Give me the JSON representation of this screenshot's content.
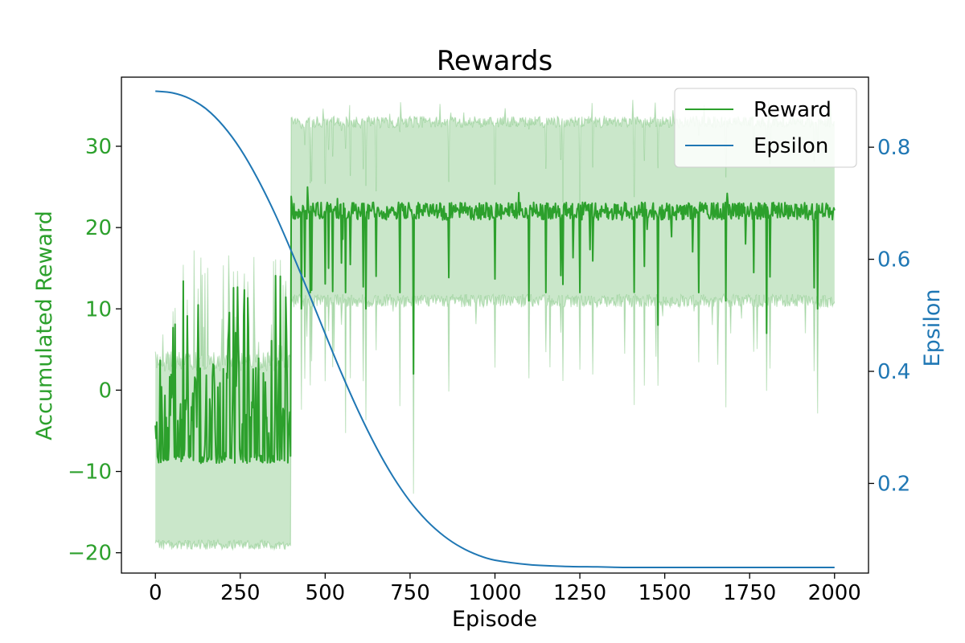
{
  "chart_data": {
    "type": "line",
    "title": "Rewards",
    "xlabel": "Episode",
    "ylabel_left": "Accumulated Reward",
    "ylabel_right": "Epsilon",
    "xlim": [
      -100,
      2100
    ],
    "ylim_left": [
      -22.5,
      38.5
    ],
    "ylim_right": [
      0.04,
      0.925
    ],
    "xticks": [
      0,
      250,
      500,
      750,
      1000,
      1250,
      1500,
      1750,
      2000
    ],
    "yticks_left": [
      -20,
      -10,
      0,
      10,
      20,
      30
    ],
    "yticks_right": [
      0.2,
      0.4,
      0.6,
      0.8
    ],
    "legend": {
      "position": "top-right",
      "entries": [
        "Reward",
        "Epsilon"
      ]
    },
    "colors": {
      "reward": "#2ca02c",
      "reward_fill": "#2ca02c",
      "epsilon": "#1f77b4"
    },
    "series": [
      {
        "name": "Reward",
        "axis": "left",
        "band": "shaded min–max range per episode",
        "segments": [
          {
            "x_range": [
              0,
              400
            ],
            "mean_range": [
              -9,
              15
            ],
            "lower": -19,
            "upper": 3
          },
          {
            "x_range": [
              400,
              2000
            ],
            "mean": 22,
            "mean_range": [
              7,
              25
            ],
            "lower": 11,
            "upper": 33
          }
        ],
        "dips": [
          {
            "x": 430,
            "y": 10
          },
          {
            "x": 455,
            "y": 12
          },
          {
            "x": 510,
            "y": 15
          },
          {
            "x": 560,
            "y": 12
          },
          {
            "x": 620,
            "y": 10
          },
          {
            "x": 650,
            "y": 14
          },
          {
            "x": 720,
            "y": 12
          },
          {
            "x": 760,
            "y": 2
          },
          {
            "x": 1100,
            "y": 11
          },
          {
            "x": 1150,
            "y": 12
          },
          {
            "x": 1200,
            "y": 13
          },
          {
            "x": 1250,
            "y": 12
          },
          {
            "x": 1480,
            "y": 8
          },
          {
            "x": 1600,
            "y": 12
          },
          {
            "x": 1680,
            "y": 11
          },
          {
            "x": 1800,
            "y": 7
          },
          {
            "x": 1950,
            "y": 10
          }
        ]
      },
      {
        "name": "Epsilon",
        "axis": "right",
        "x": [
          0,
          50,
          100,
          150,
          200,
          250,
          300,
          350,
          400,
          450,
          500,
          550,
          600,
          650,
          700,
          750,
          800,
          850,
          900,
          950,
          1000,
          1100,
          1200,
          1300,
          1400,
          1500,
          1750,
          2000
        ],
        "values": [
          0.9,
          0.897,
          0.887,
          0.868,
          0.838,
          0.797,
          0.745,
          0.684,
          0.615,
          0.542,
          0.467,
          0.394,
          0.326,
          0.265,
          0.212,
          0.168,
          0.133,
          0.106,
          0.086,
          0.072,
          0.063,
          0.055,
          0.052,
          0.051,
          0.05,
          0.05,
          0.05,
          0.05
        ]
      }
    ]
  }
}
